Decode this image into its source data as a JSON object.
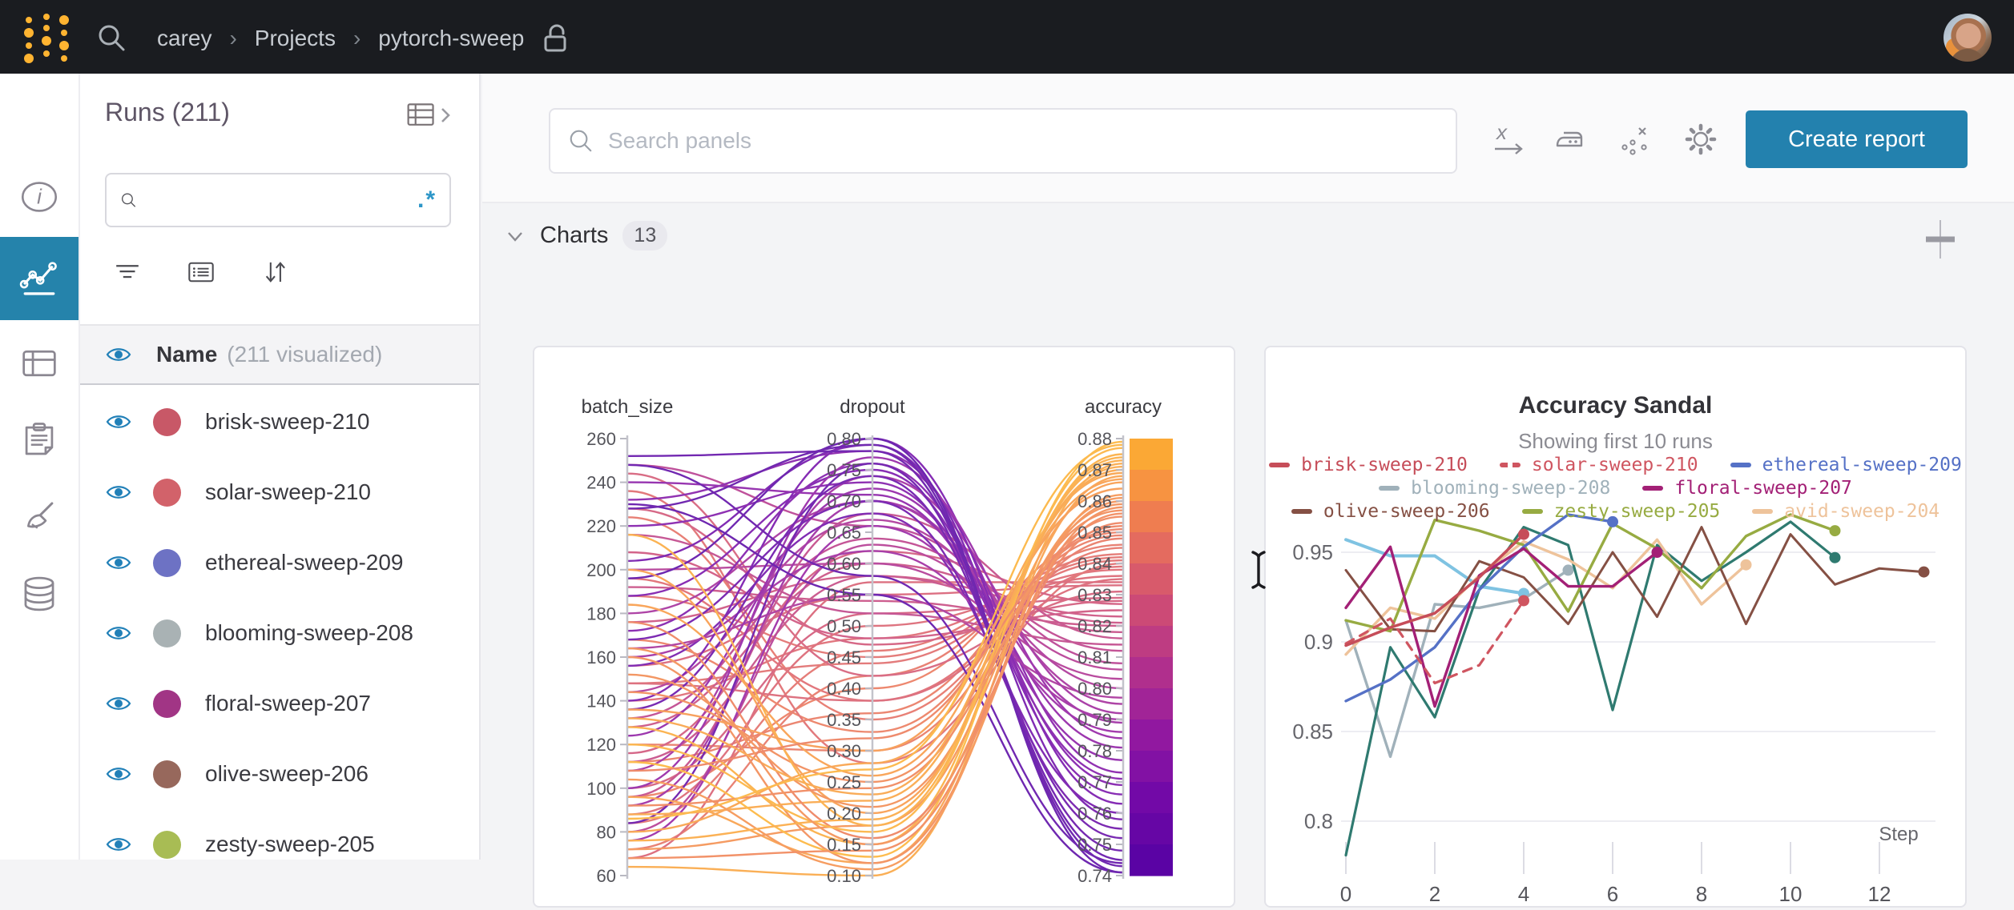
{
  "topbar": {
    "breadcrumb": [
      "carey",
      "Projects",
      "pytorch-sweep"
    ]
  },
  "sidebar": {
    "items": [
      {
        "icon": "info-icon",
        "active": false
      },
      {
        "icon": "workspace-charts-icon",
        "active": true
      },
      {
        "icon": "table-icon",
        "active": false
      },
      {
        "icon": "reports-clipboard-icon",
        "active": false
      },
      {
        "icon": "sweeps-broom-icon",
        "active": false
      },
      {
        "icon": "artifacts-database-icon",
        "active": false
      }
    ]
  },
  "runs_panel": {
    "title": "Runs (211)",
    "search_value": "",
    "header": {
      "label": "Name",
      "sublabel": "(211 visualized)"
    },
    "runs": [
      {
        "name": "brisk-sweep-210",
        "color": "#c85867"
      },
      {
        "name": "solar-sweep-210",
        "color": "#d2626a"
      },
      {
        "name": "ethereal-sweep-209",
        "color": "#6d72c4"
      },
      {
        "name": "blooming-sweep-208",
        "color": "#a9b2b4"
      },
      {
        "name": "floral-sweep-207",
        "color": "#a13585"
      },
      {
        "name": "olive-sweep-206",
        "color": "#97685c"
      },
      {
        "name": "zesty-sweep-205",
        "color": "#a8bc54"
      }
    ]
  },
  "main": {
    "search_placeholder": "Search panels",
    "create_report_label": "Create report",
    "section": {
      "title": "Charts",
      "count": "13"
    }
  },
  "colors": {
    "topbar_bg": "#1a1c20",
    "accent_blue": "#2381ae",
    "logo_gold": "#ffb431",
    "eye_blue": "#2180b8"
  },
  "chart_data": [
    {
      "type": "parallel-coordinates",
      "axes": [
        {
          "name": "batch_size",
          "min": 60,
          "max": 260,
          "ticks": [
            "260",
            "240",
            "220",
            "200",
            "180",
            "160",
            "140",
            "120",
            "100",
            "80",
            "60"
          ]
        },
        {
          "name": "dropout",
          "min": 0.1,
          "max": 0.8,
          "ticks": [
            "0.80",
            "0.75",
            "0.70",
            "0.65",
            "0.60",
            "0.55",
            "0.50",
            "0.45",
            "0.40",
            "0.35",
            "0.30",
            "0.25",
            "0.20",
            "0.15",
            "0.10"
          ]
        },
        {
          "name": "accuracy",
          "min": 0.74,
          "max": 0.88,
          "ticks": [
            "0.88",
            "0.87",
            "0.86",
            "0.85",
            "0.84",
            "0.83",
            "0.82",
            "0.81",
            "0.80",
            "0.79",
            "0.78",
            "0.77",
            "0.76",
            "0.75",
            "0.74"
          ]
        }
      ],
      "color_by": "accuracy",
      "colorscale": [
        [
          0.74,
          "#5402a3"
        ],
        [
          0.765,
          "#7209a7"
        ],
        [
          0.785,
          "#9118a0"
        ],
        [
          0.805,
          "#b02f8d"
        ],
        [
          0.825,
          "#cc4a76"
        ],
        [
          0.84,
          "#de6266"
        ],
        [
          0.853,
          "#ed7953"
        ],
        [
          0.866,
          "#f89540"
        ],
        [
          0.88,
          "#fdb32f"
        ]
      ],
      "runs": [
        [
          224,
          0.35,
          0.845
        ],
        [
          96,
          0.4,
          0.85
        ],
        [
          148,
          0.44,
          0.841
        ],
        [
          120,
          0.3,
          0.848
        ],
        [
          196,
          0.38,
          0.839
        ],
        [
          84,
          0.46,
          0.843
        ],
        [
          168,
          0.33,
          0.851
        ],
        [
          140,
          0.48,
          0.838
        ],
        [
          72,
          0.42,
          0.846
        ],
        [
          236,
          0.28,
          0.84
        ],
        [
          112,
          0.36,
          0.849
        ],
        [
          188,
          0.45,
          0.842
        ],
        [
          100,
          0.52,
          0.829
        ],
        [
          156,
          0.55,
          0.833
        ],
        [
          208,
          0.48,
          0.825
        ],
        [
          128,
          0.6,
          0.821
        ],
        [
          88,
          0.5,
          0.836
        ],
        [
          176,
          0.58,
          0.823
        ],
        [
          244,
          0.42,
          0.831
        ],
        [
          116,
          0.62,
          0.827
        ],
        [
          148,
          0.38,
          0.835
        ],
        [
          192,
          0.54,
          0.82
        ],
        [
          68,
          0.57,
          0.834
        ],
        [
          228,
          0.47,
          0.828
        ],
        [
          132,
          0.64,
          0.812
        ],
        [
          200,
          0.6,
          0.803
        ],
        [
          96,
          0.68,
          0.816
        ],
        [
          164,
          0.55,
          0.797
        ],
        [
          248,
          0.66,
          0.808
        ],
        [
          112,
          0.58,
          0.818
        ],
        [
          180,
          0.7,
          0.795
        ],
        [
          80,
          0.63,
          0.806
        ],
        [
          216,
          0.52,
          0.814
        ],
        [
          144,
          0.67,
          0.8
        ],
        [
          124,
          0.72,
          0.781
        ],
        [
          188,
          0.75,
          0.766
        ],
        [
          92,
          0.7,
          0.789
        ],
        [
          232,
          0.78,
          0.773
        ],
        [
          156,
          0.68,
          0.76
        ],
        [
          108,
          0.74,
          0.792
        ],
        [
          204,
          0.79,
          0.758
        ],
        [
          76,
          0.66,
          0.786
        ],
        [
          172,
          0.76,
          0.769
        ],
        [
          240,
          0.71,
          0.777
        ],
        [
          140,
          0.8,
          0.763
        ],
        [
          100,
          0.77,
          0.784
        ],
        [
          220,
          0.73,
          0.771
        ],
        [
          160,
          0.62,
          0.79
        ],
        [
          252,
          0.78,
          0.745
        ],
        [
          136,
          0.74,
          0.752
        ],
        [
          196,
          0.8,
          0.741
        ],
        [
          84,
          0.76,
          0.748
        ],
        [
          168,
          0.7,
          0.755
        ],
        [
          228,
          0.79,
          0.743
        ],
        [
          230,
          0.55,
          0.741
        ],
        [
          248,
          0.58,
          0.744
        ],
        [
          64,
          0.1,
          0.872
        ],
        [
          96,
          0.12,
          0.868
        ],
        [
          128,
          0.15,
          0.875
        ],
        [
          72,
          0.18,
          0.861
        ],
        [
          160,
          0.12,
          0.858
        ],
        [
          200,
          0.2,
          0.866
        ],
        [
          88,
          0.22,
          0.871
        ],
        [
          144,
          0.25,
          0.857
        ],
        [
          112,
          0.13,
          0.879
        ],
        [
          176,
          0.16,
          0.853
        ],
        [
          80,
          0.28,
          0.869
        ],
        [
          104,
          0.11,
          0.862
        ],
        [
          216,
          0.18,
          0.874
        ],
        [
          68,
          0.14,
          0.856
        ],
        [
          136,
          0.3,
          0.864
        ],
        [
          152,
          0.21,
          0.859
        ],
        [
          120,
          0.17,
          0.877
        ],
        [
          92,
          0.24,
          0.855
        ],
        [
          184,
          0.26,
          0.867
        ],
        [
          76,
          0.19,
          0.873
        ],
        [
          108,
          0.32,
          0.852
        ],
        [
          132,
          0.23,
          0.87
        ],
        [
          164,
          0.15,
          0.86
        ],
        [
          86,
          0.27,
          0.878
        ]
      ]
    },
    {
      "type": "line",
      "title": "Accuracy Sandal",
      "subtitle": "Showing first 10 runs",
      "xlabel": "Step",
      "x_ticks": [
        0,
        2,
        4,
        6,
        8,
        10,
        12
      ],
      "y_ticks": [
        "0.8",
        "0.85",
        "0.9",
        "0.95"
      ],
      "xlim": [
        0,
        13.3
      ],
      "ylim": [
        0.775,
        0.978
      ],
      "grid": true,
      "legend_position": "top",
      "series": [
        {
          "name": "brisk-sweep-210",
          "color": "#c64d59",
          "dash": false,
          "width": 3.5,
          "in_legend": true,
          "end_dot": true,
          "x": [
            0,
            1,
            2,
            3,
            4
          ],
          "y": [
            0.898,
            0.908,
            0.916,
            0.936,
            0.96
          ]
        },
        {
          "name": "solar-sweep-210",
          "color": "#cf5560",
          "dash": true,
          "width": 3.2,
          "in_legend": true,
          "end_dot": true,
          "x": [
            0,
            1,
            2,
            3,
            4
          ],
          "y": [
            0.899,
            0.913,
            0.877,
            0.887,
            0.923
          ]
        },
        {
          "name": "ethereal-sweep-209",
          "color": "#5571c6",
          "dash": false,
          "width": 3.4,
          "in_legend": true,
          "end_dot": true,
          "x": [
            0,
            1,
            2,
            3,
            4,
            5,
            6
          ],
          "y": [
            0.867,
            0.879,
            0.897,
            0.929,
            0.953,
            0.971,
            0.967
          ]
        },
        {
          "name": "blooming-sweep-208",
          "color": "#a0b1ba",
          "dash": false,
          "width": 3.4,
          "in_legend": true,
          "end_dot": true,
          "x": [
            0,
            1,
            2,
            3,
            4,
            5
          ],
          "y": [
            0.912,
            0.836,
            0.921,
            0.919,
            0.924,
            0.94
          ]
        },
        {
          "name": "floral-sweep-207",
          "color": "#a32076",
          "dash": false,
          "width": 3.4,
          "in_legend": true,
          "end_dot": true,
          "x": [
            0,
            1,
            2,
            3,
            4,
            5,
            6,
            7
          ],
          "y": [
            0.919,
            0.953,
            0.864,
            0.937,
            0.952,
            0.931,
            0.931,
            0.95
          ]
        },
        {
          "name": "olive-sweep-206",
          "color": "#855044",
          "dash": false,
          "width": 3.0,
          "in_legend": true,
          "end_dot": true,
          "x": [
            0,
            1,
            2,
            3,
            4,
            5,
            6,
            7,
            8,
            9,
            10,
            11,
            12,
            13
          ],
          "y": [
            0.94,
            0.907,
            0.906,
            0.945,
            0.936,
            0.91,
            0.95,
            0.914,
            0.964,
            0.91,
            0.96,
            0.932,
            0.941,
            0.939
          ]
        },
        {
          "name": "zesty-sweep-205",
          "color": "#97ab42",
          "dash": false,
          "width": 3.4,
          "in_legend": true,
          "end_dot": true,
          "x": [
            0,
            1,
            2,
            3,
            4,
            5,
            6,
            7,
            8,
            9,
            10,
            11
          ],
          "y": [
            0.912,
            0.906,
            0.968,
            0.962,
            0.954,
            0.917,
            0.966,
            0.952,
            0.93,
            0.959,
            0.971,
            0.962
          ]
        },
        {
          "name": "avid-sweep-204",
          "color": "#eec39b",
          "dash": false,
          "width": 3.4,
          "in_legend": true,
          "end_dot": true,
          "x": [
            0,
            1,
            2,
            3,
            4,
            5,
            6,
            7,
            8,
            9
          ],
          "y": [
            0.893,
            0.919,
            0.913,
            0.937,
            0.956,
            0.946,
            0.93,
            0.957,
            0.921,
            0.943
          ]
        },
        {
          "name": "",
          "color": "#7fc3e2",
          "dash": false,
          "width": 4.0,
          "in_legend": false,
          "end_dot": true,
          "x": [
            0,
            1,
            2,
            3,
            4
          ],
          "y": [
            0.957,
            0.948,
            0.948,
            0.931,
            0.927
          ]
        },
        {
          "name": "",
          "color": "#2f7a70",
          "dash": false,
          "width": 3.2,
          "in_legend": false,
          "end_dot": true,
          "x": [
            0,
            1,
            2,
            3,
            4,
            5,
            6,
            7,
            8,
            9,
            10,
            11
          ],
          "y": [
            0.781,
            0.897,
            0.858,
            0.929,
            0.964,
            0.954,
            0.862,
            0.954,
            0.934,
            0.95,
            0.967,
            0.947
          ]
        }
      ]
    }
  ]
}
